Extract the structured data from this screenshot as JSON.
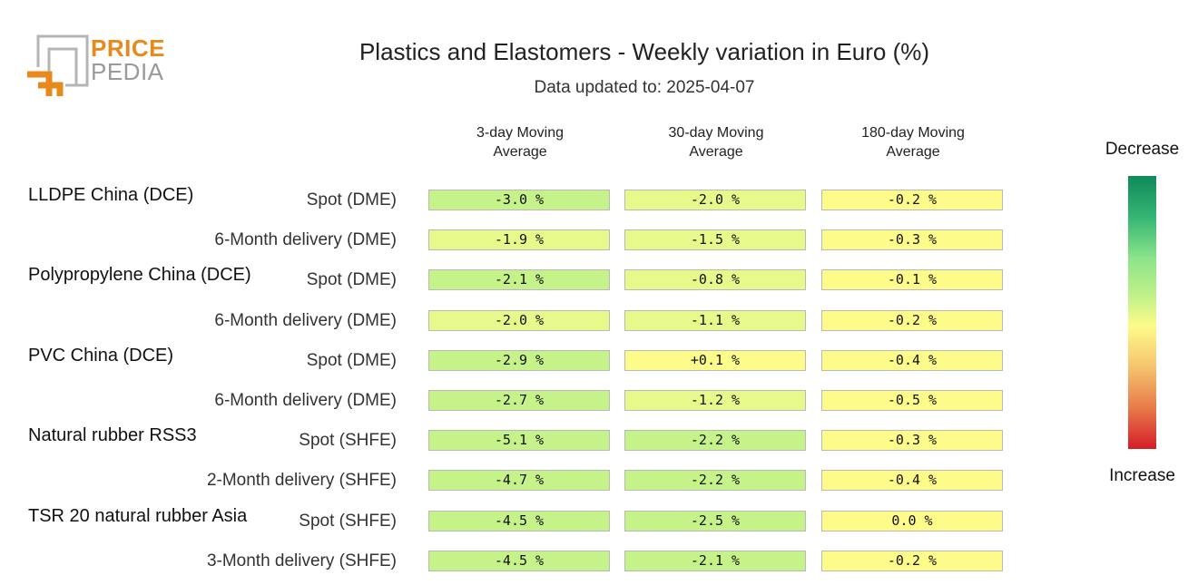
{
  "logo": {
    "line1": "PRICE",
    "line2": "PEDIA",
    "orange": "#e8891c",
    "gray": "#9a9a9a"
  },
  "header": {
    "title": "Plastics and Elastomers - Weekly variation in Euro (%)",
    "subtitle": "Data updated to: 2025-04-07"
  },
  "legend": {
    "top_label": "Decrease",
    "bottom_label": "Increase"
  },
  "chart_data": {
    "type": "heatmap",
    "columns": [
      "3-day Moving Average",
      "30-day Moving Average",
      "180-day Moving Average"
    ],
    "groups": [
      {
        "name": "LLDPE China (DCE)",
        "rows": [
          {
            "label": "Spot (DME)",
            "values": [
              "-3.0 %",
              "-2.0 %",
              "-0.2 %"
            ],
            "numbers": [
              -3.0,
              -2.0,
              -0.2
            ]
          },
          {
            "label": "6-Month delivery (DME)",
            "values": [
              "-1.9 %",
              "-1.5 %",
              "-0.3 %"
            ],
            "numbers": [
              -1.9,
              -1.5,
              -0.3
            ]
          }
        ]
      },
      {
        "name": "Polypropylene China (DCE)",
        "rows": [
          {
            "label": "Spot (DME)",
            "values": [
              "-2.1 %",
              "-0.8 %",
              "-0.1 %"
            ],
            "numbers": [
              -2.1,
              -0.8,
              -0.1
            ]
          },
          {
            "label": "6-Month delivery (DME)",
            "values": [
              "-2.0 %",
              "-1.1 %",
              "-0.2 %"
            ],
            "numbers": [
              -2.0,
              -1.1,
              -0.2
            ]
          }
        ]
      },
      {
        "name": "PVC China (DCE)",
        "rows": [
          {
            "label": "Spot (DME)",
            "values": [
              "-2.9 %",
              "+0.1 %",
              "-0.4 %"
            ],
            "numbers": [
              -2.9,
              0.1,
              -0.4
            ]
          },
          {
            "label": "6-Month delivery (DME)",
            "values": [
              "-2.7 %",
              "-1.2 %",
              "-0.5 %"
            ],
            "numbers": [
              -2.7,
              -1.2,
              -0.5
            ]
          }
        ]
      },
      {
        "name": "Natural rubber RSS3",
        "rows": [
          {
            "label": "Spot (SHFE)",
            "values": [
              "-5.1 %",
              "-2.2 %",
              "-0.3 %"
            ],
            "numbers": [
              -5.1,
              -2.2,
              -0.3
            ]
          },
          {
            "label": "2-Month delivery (SHFE)",
            "values": [
              "-4.7 %",
              "-2.2 %",
              "-0.4 %"
            ],
            "numbers": [
              -4.7,
              -2.2,
              -0.4
            ]
          }
        ]
      },
      {
        "name": "TSR 20 natural rubber Asia",
        "rows": [
          {
            "label": "Spot (SHFE)",
            "values": [
              "-4.5 %",
              "-2.5 %",
              "0.0 %"
            ],
            "numbers": [
              -4.5,
              -2.5,
              0.0
            ]
          },
          {
            "label": "3-Month delivery (SHFE)",
            "values": [
              "-4.5 %",
              "-2.1 %",
              "-0.2 %"
            ],
            "numbers": [
              -4.5,
              -2.1,
              -0.2
            ]
          }
        ]
      }
    ],
    "colors": {
      "strong_decrease": "#c6f28a",
      "mild_decrease": "#e6f98a",
      "neutral": "#fdfb8a",
      "increase": "#f6c46e"
    }
  }
}
